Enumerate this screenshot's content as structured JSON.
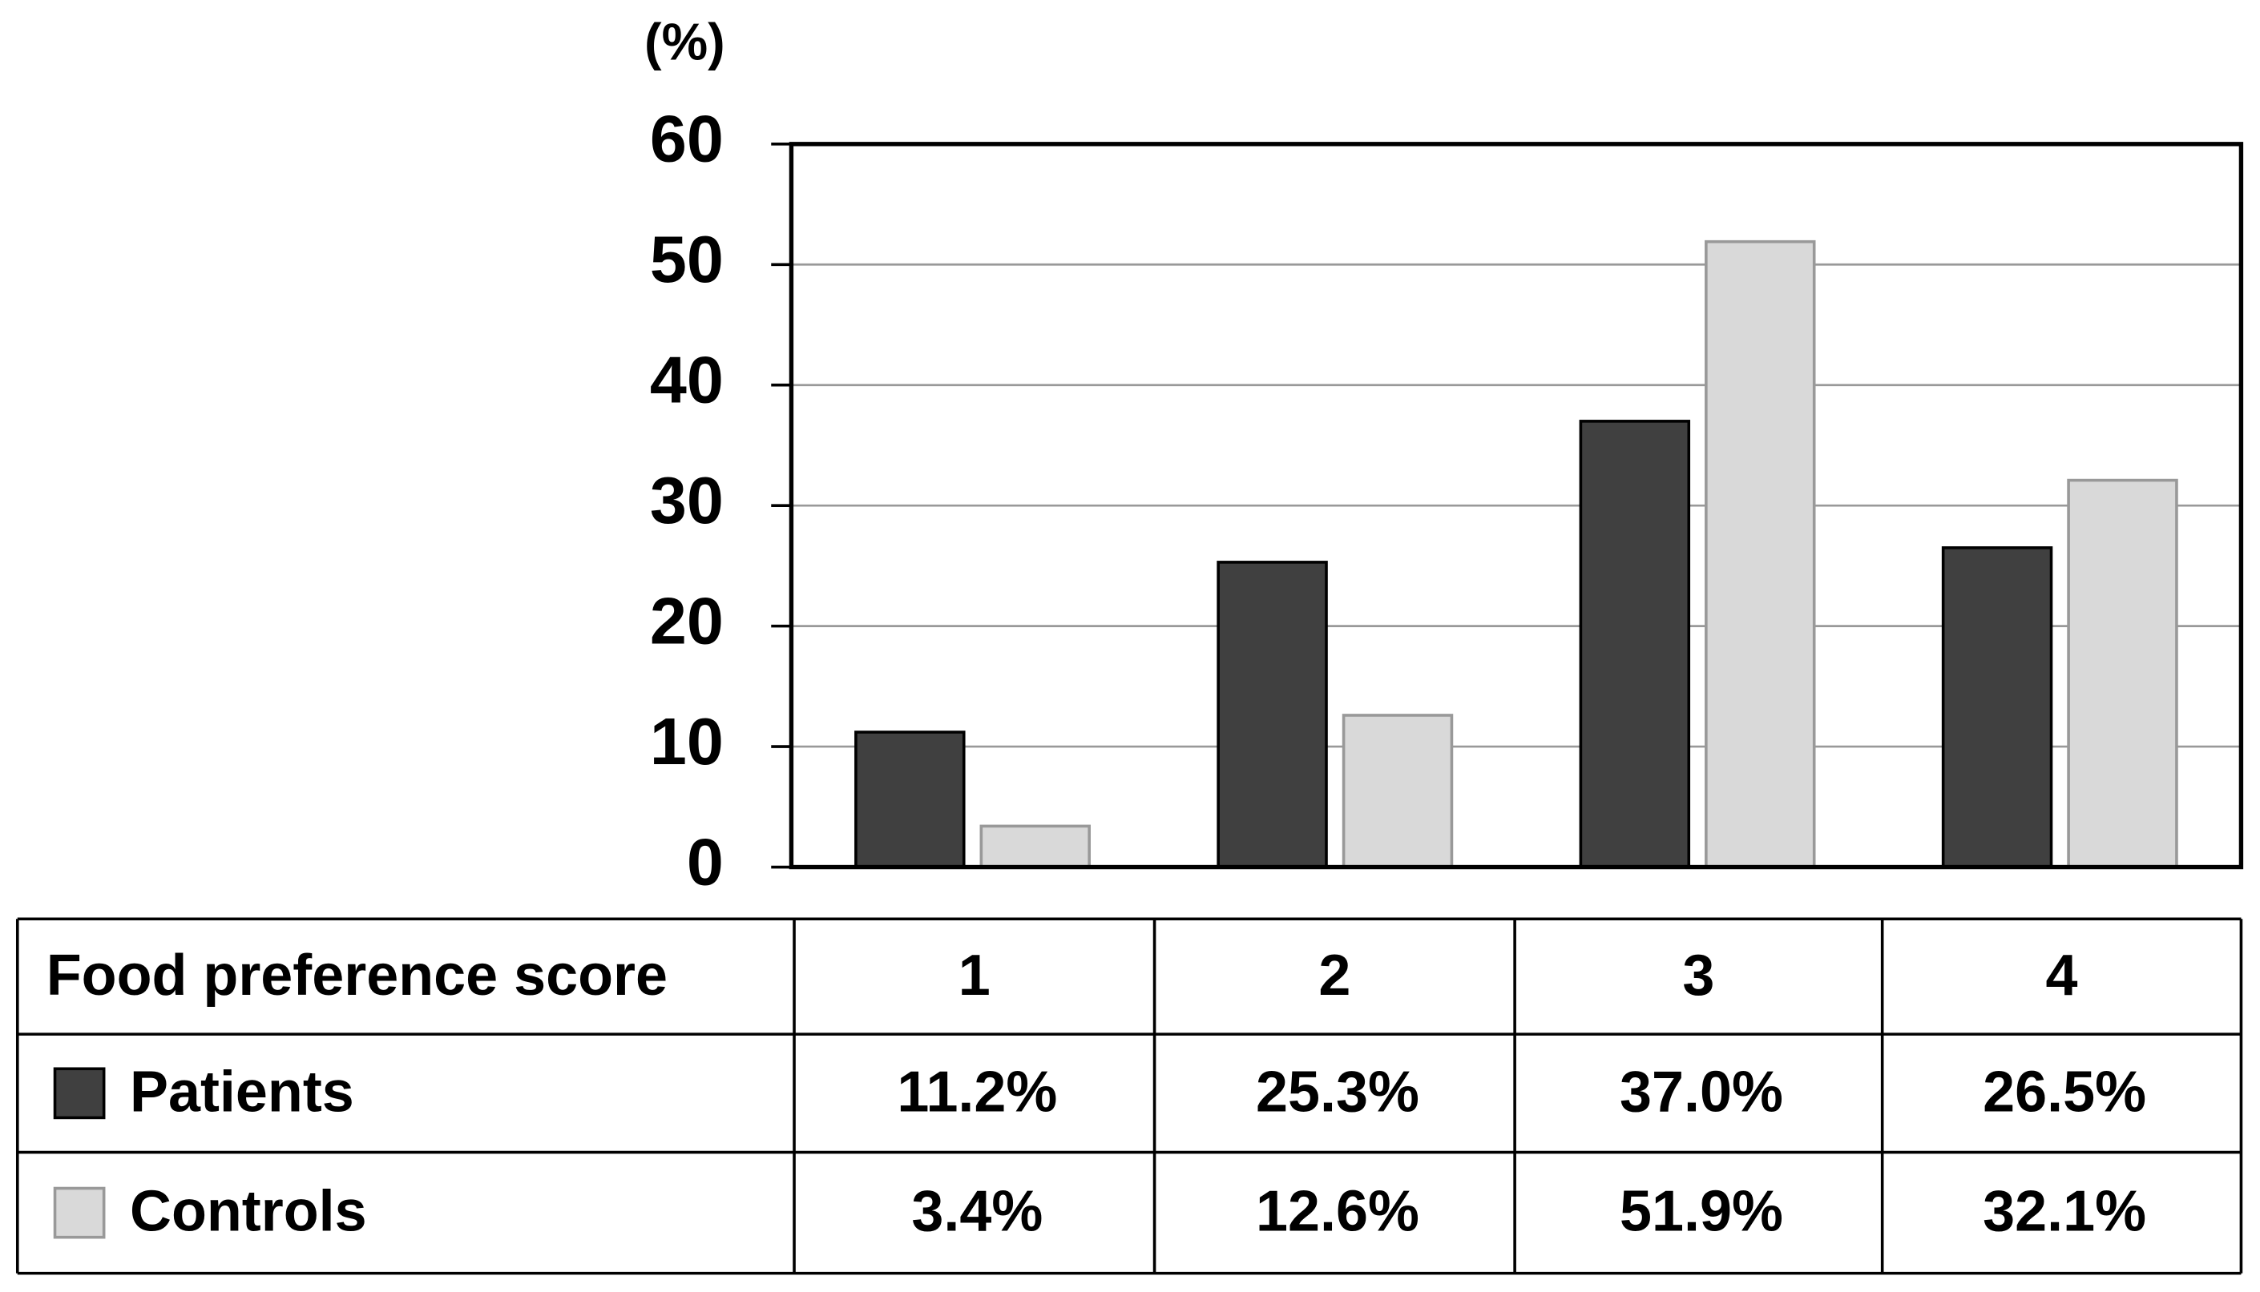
{
  "chart_data": {
    "type": "bar",
    "ylabel": "(%)",
    "xlabel": "Food preference score",
    "categories": [
      "1",
      "2",
      "3",
      "4"
    ],
    "series": [
      {
        "name": "Patients",
        "color": "#404040",
        "values": [
          11.2,
          25.3,
          37.0,
          26.5
        ],
        "value_labels": [
          "11.2%",
          "25.3%",
          "37.0%",
          "26.5%"
        ]
      },
      {
        "name": "Controls",
        "color": "#d9d9d9",
        "values": [
          3.4,
          12.6,
          51.9,
          32.1
        ],
        "value_labels": [
          "3.4%",
          "12.6%",
          "51.9%",
          "32.1%"
        ]
      }
    ],
    "ylim": [
      0,
      60
    ],
    "yticks": [
      0,
      10,
      20,
      30,
      40,
      50,
      60
    ],
    "grid": true
  }
}
